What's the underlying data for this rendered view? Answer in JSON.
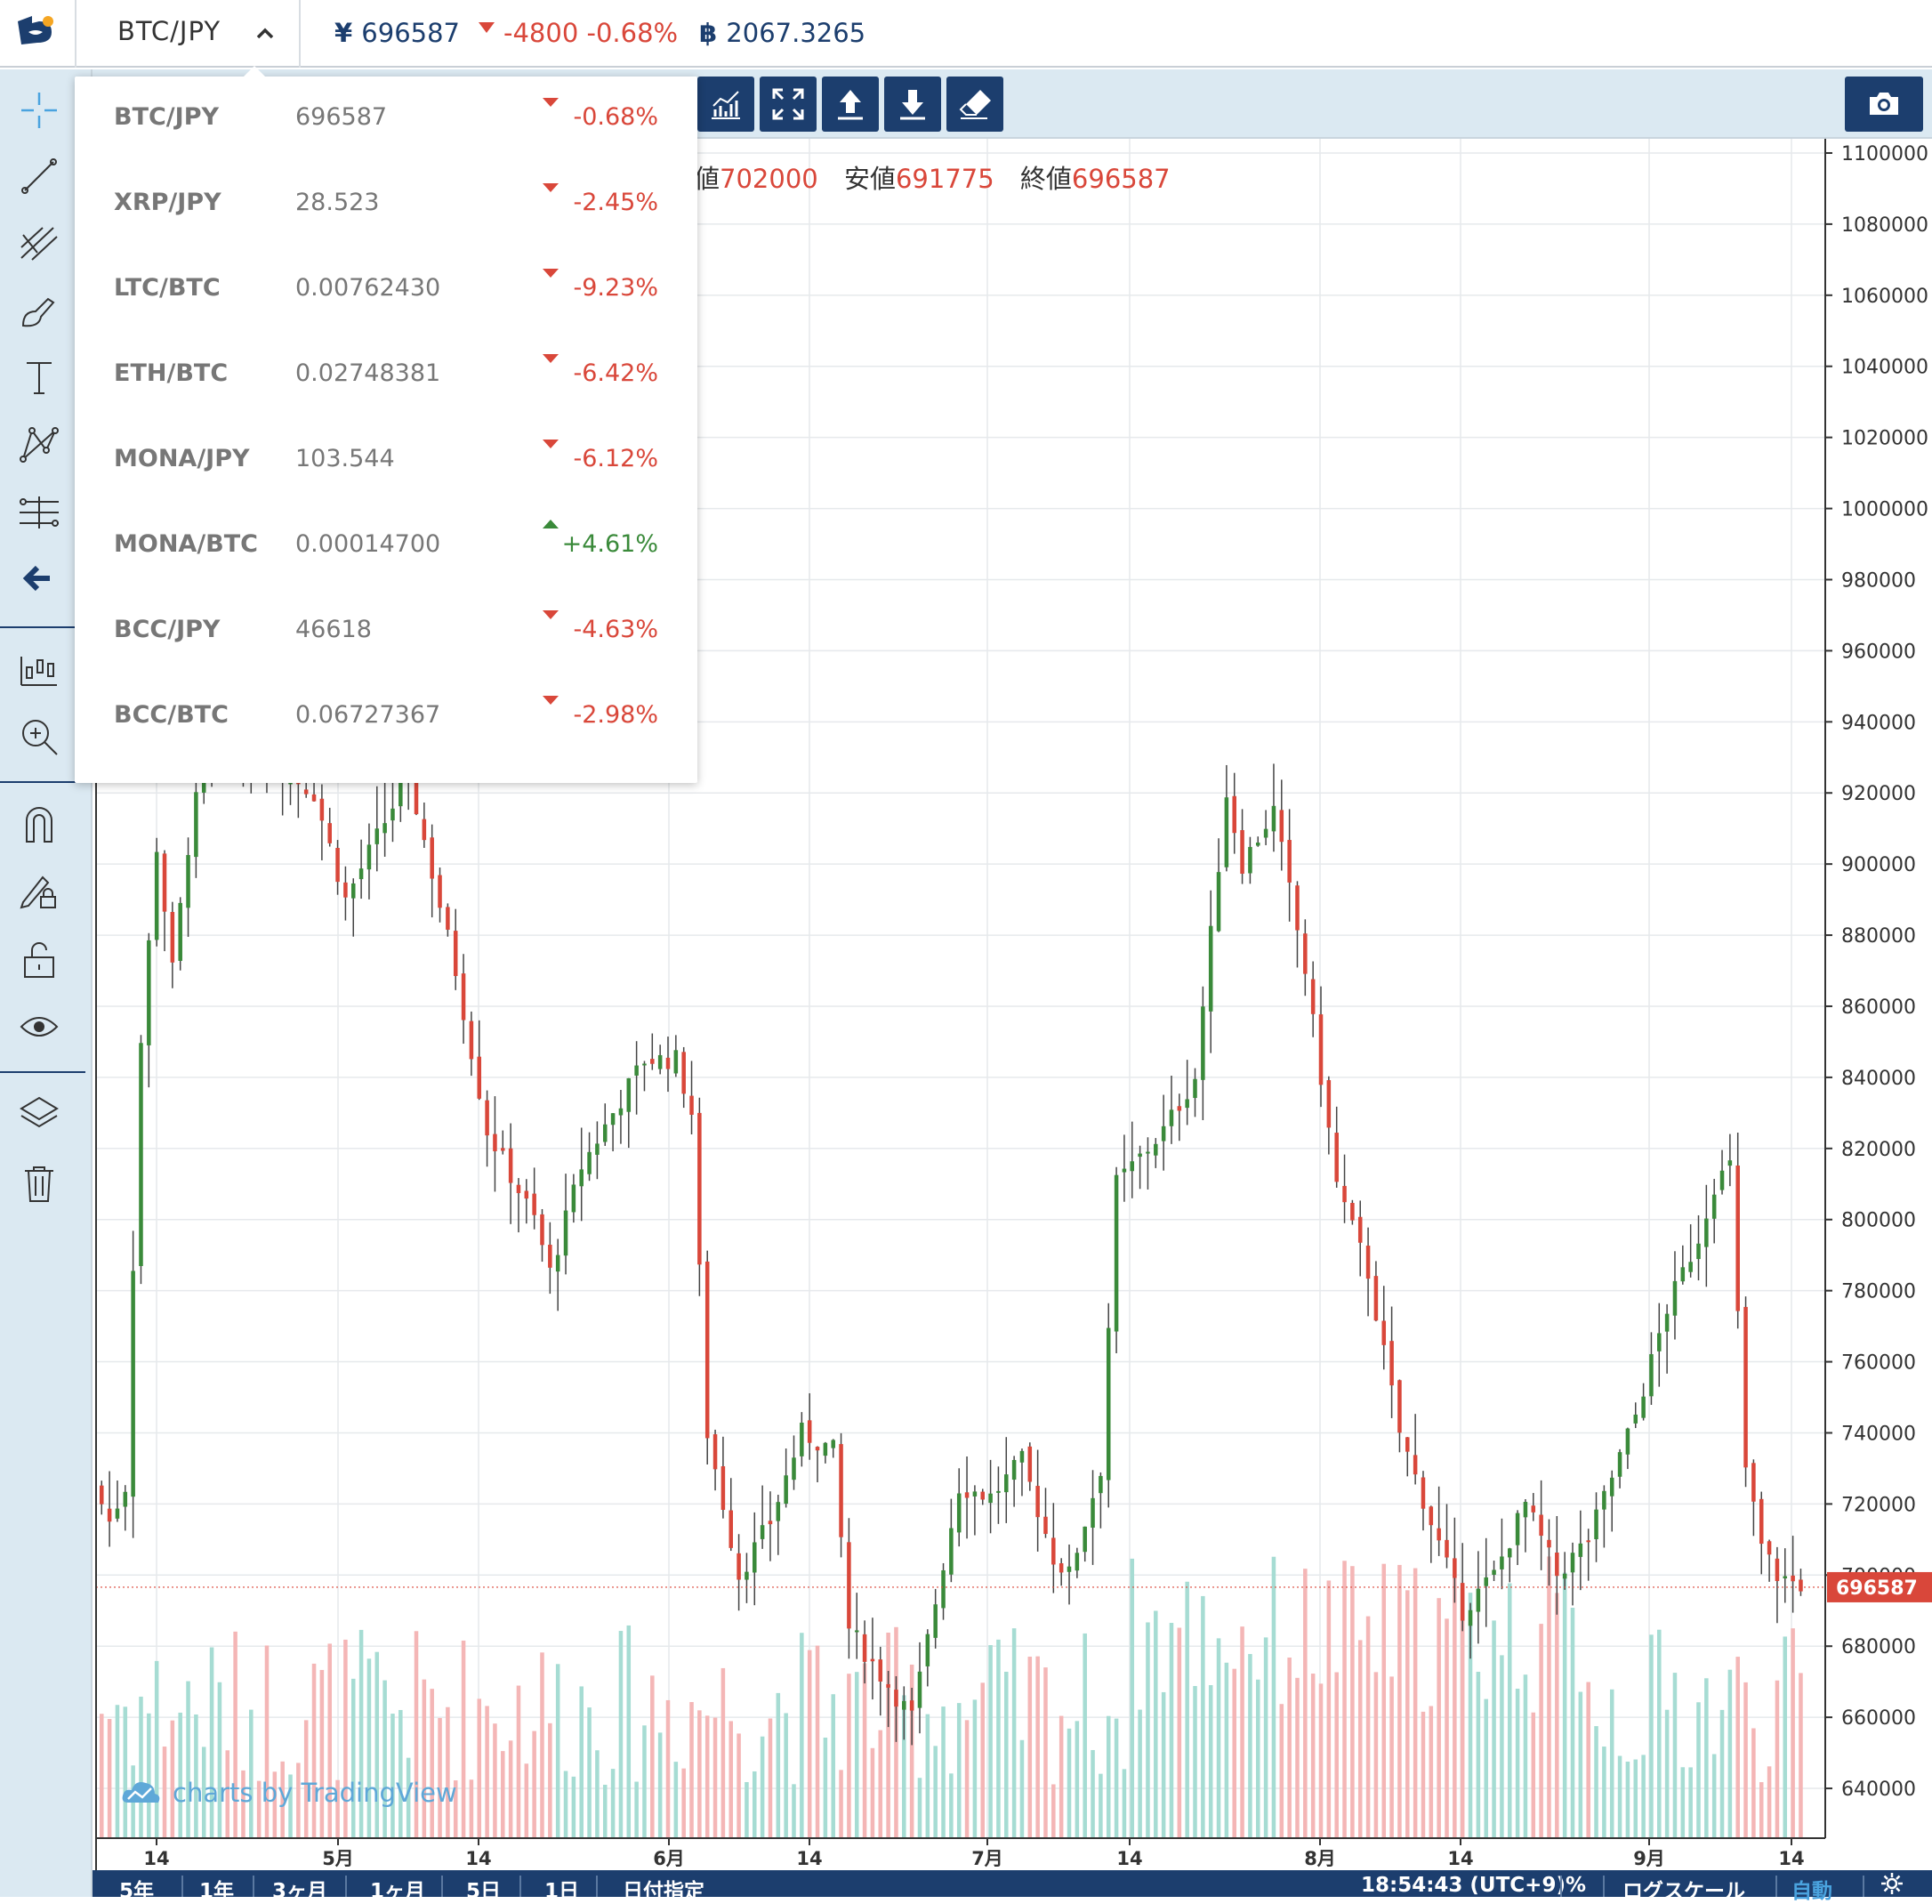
{
  "header": {
    "pair": "BTC/JPY",
    "price_symbol": "¥",
    "price": "696587",
    "change": "-4800 -0.68%",
    "btc_symbol": "฿",
    "btc_value": "2067.3265"
  },
  "legend": {
    "high_label": "値",
    "high": "702000",
    "low_label": "安値",
    "low": "691775",
    "close_label": "終値",
    "close": "696587"
  },
  "pairs": [
    {
      "name": "BTC/JPY",
      "price": "696587",
      "change": "-0.68%",
      "dir": "down"
    },
    {
      "name": "XRP/JPY",
      "price": "28.523",
      "change": "-2.45%",
      "dir": "down"
    },
    {
      "name": "LTC/BTC",
      "price": "0.00762430",
      "change": "-9.23%",
      "dir": "down"
    },
    {
      "name": "ETH/BTC",
      "price": "0.02748381",
      "change": "-6.42%",
      "dir": "down"
    },
    {
      "name": "MONA/JPY",
      "price": "103.544",
      "change": "-6.12%",
      "dir": "down"
    },
    {
      "name": "MONA/BTC",
      "price": "0.00014700",
      "change": "+4.61%",
      "dir": "up"
    },
    {
      "name": "BCC/JPY",
      "price": "46618",
      "change": "-4.63%",
      "dir": "down"
    },
    {
      "name": "BCC/BTC",
      "price": "0.06727367",
      "change": "-2.98%",
      "dir": "down"
    }
  ],
  "left_tools": [
    "crosshair-icon",
    "trend-line-icon",
    "pitchfork-icon",
    "brush-icon",
    "text-icon",
    "pattern-icon",
    "measure-icon",
    "back-arrow-icon",
    "chart-type-icon",
    "zoom-icon",
    "magnet-icon",
    "lock-drawing-icon",
    "unlock-icon",
    "eye-icon",
    "layers-icon",
    "trash-icon"
  ],
  "toolbar_buttons": [
    "indicators-icon",
    "fullscreen-icon",
    "upload-icon",
    "download-icon",
    "eraser-icon"
  ],
  "snapshot_button": "camera-icon",
  "chart_data": {
    "type": "candlestick",
    "y_ticks": [
      "1100000",
      "1080000",
      "1060000",
      "1040000",
      "1020000",
      "1000000",
      "980000",
      "960000",
      "940000",
      "920000",
      "900000",
      "880000",
      "860000",
      "840000",
      "820000",
      "800000",
      "780000",
      "760000",
      "740000",
      "720000",
      "700000",
      "680000",
      "660000",
      "640000"
    ],
    "ylim": [
      626000,
      1104000
    ],
    "x_ticks": [
      "14",
      "5月",
      "14",
      "6月",
      "14",
      "7月",
      "14",
      "8月",
      "14",
      "9月",
      "14"
    ],
    "last_price_label": "696587",
    "last_price": 696587,
    "up_color": "#3a8a3a",
    "down_color": "#d9473a",
    "vol_up_color": "#a6dcd3",
    "vol_down_color": "#f4b6b6",
    "watermark": "charts by TradingView"
  },
  "bottom_bar": {
    "ranges": [
      "5年",
      "1年",
      "3ヶ月",
      "1ヶ月",
      "5日",
      "1日",
      "日付指定"
    ],
    "time": "18:54:43 (UTC+9)",
    "percent": "%",
    "log_scale": "ログスケール",
    "auto": "自動"
  }
}
